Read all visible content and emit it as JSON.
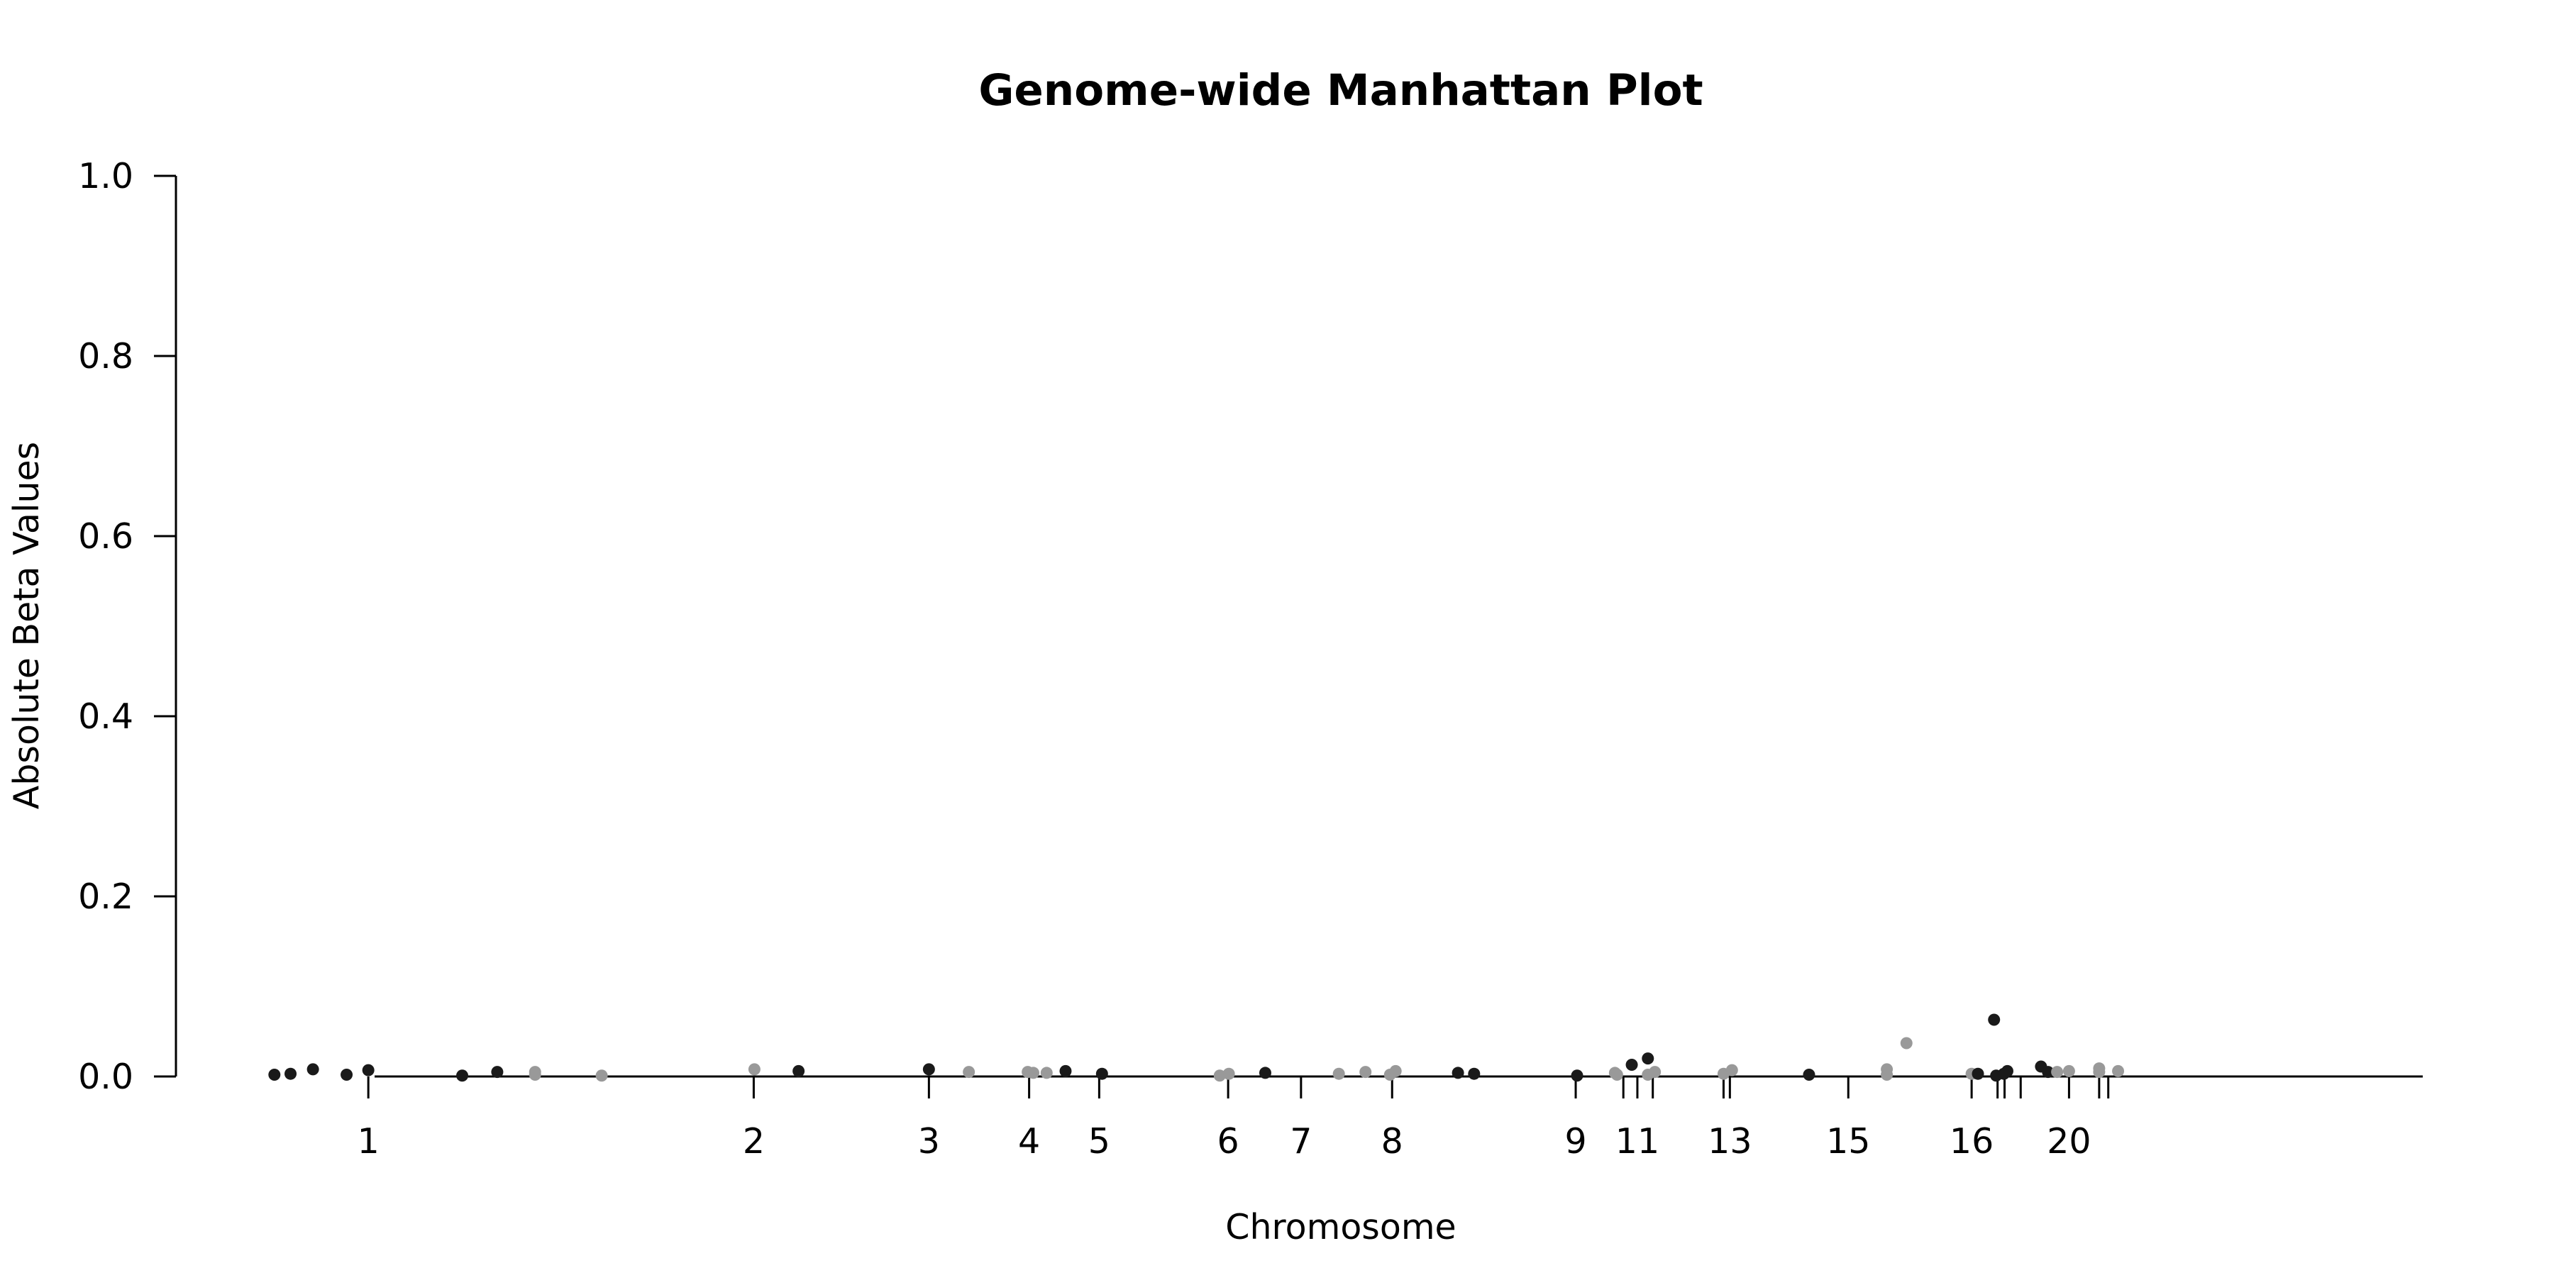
{
  "chart_data": {
    "type": "scatter",
    "title": "Genome-wide Manhattan Plot",
    "xlabel": "Chromosome",
    "ylabel": "Absolute Beta Values",
    "ylim": [
      0,
      1
    ],
    "xlim": [
      0,
      3100
    ],
    "y_ticks": [
      "0.0",
      "0.2",
      "0.4",
      "0.6",
      "0.8",
      "1.0"
    ],
    "y_tick_values": [
      0,
      0.2,
      0.4,
      0.6,
      0.8,
      1.0
    ],
    "grid": false,
    "legend": "none",
    "colors": {
      "odd": "#1a1a1a",
      "even": "#999999"
    },
    "x_ticks": [
      {
        "value": 150,
        "label": "1"
      },
      {
        "value": 700,
        "label": "2"
      },
      {
        "value": 950,
        "label": "3"
      },
      {
        "value": 1093,
        "label": "4"
      },
      {
        "value": 1193,
        "label": "5"
      },
      {
        "value": 1377,
        "label": "6"
      },
      {
        "value": 1481,
        "label": "7"
      },
      {
        "value": 1611,
        "label": "8"
      },
      {
        "value": 1873,
        "label": "9"
      },
      {
        "value": 1941,
        "label": ""
      },
      {
        "value": 1961,
        "label": "11"
      },
      {
        "value": 1983,
        "label": ""
      },
      {
        "value": 2084,
        "label": ""
      },
      {
        "value": 2093,
        "label": "13"
      },
      {
        "value": 2262,
        "label": "15"
      },
      {
        "value": 2438,
        "label": "16"
      },
      {
        "value": 2475,
        "label": ""
      },
      {
        "value": 2485,
        "label": ""
      },
      {
        "value": 2508,
        "label": ""
      },
      {
        "value": 2577,
        "label": "20"
      },
      {
        "value": 2620,
        "label": ""
      },
      {
        "value": 2633,
        "label": ""
      }
    ],
    "points": [
      {
        "x": 16,
        "y": 0.002,
        "group": "odd"
      },
      {
        "x": 39,
        "y": 0.003,
        "group": "odd"
      },
      {
        "x": 71,
        "y": 0.008,
        "group": "odd"
      },
      {
        "x": 119,
        "y": 0.002,
        "group": "odd"
      },
      {
        "x": 150,
        "y": 0.007,
        "group": "odd"
      },
      {
        "x": 284,
        "y": 0.001,
        "group": "odd"
      },
      {
        "x": 334,
        "y": 0.005,
        "group": "odd"
      },
      {
        "x": 388,
        "y": 0.005,
        "group": "even"
      },
      {
        "x": 388,
        "y": 0.002,
        "group": "even"
      },
      {
        "x": 483,
        "y": 0.001,
        "group": "even"
      },
      {
        "x": 701,
        "y": 0.008,
        "group": "even"
      },
      {
        "x": 764,
        "y": 0.006,
        "group": "odd"
      },
      {
        "x": 950,
        "y": 0.008,
        "group": "odd"
      },
      {
        "x": 1007,
        "y": 0.005,
        "group": "even"
      },
      {
        "x": 1091,
        "y": 0.005,
        "group": "even"
      },
      {
        "x": 1099,
        "y": 0.004,
        "group": "even"
      },
      {
        "x": 1118,
        "y": 0.004,
        "group": "even"
      },
      {
        "x": 1145,
        "y": 0.006,
        "group": "odd"
      },
      {
        "x": 1197,
        "y": 0.003,
        "group": "odd"
      },
      {
        "x": 1365,
        "y": 0.001,
        "group": "even"
      },
      {
        "x": 1378,
        "y": 0.003,
        "group": "even"
      },
      {
        "x": 1430,
        "y": 0.004,
        "group": "odd"
      },
      {
        "x": 1535,
        "y": 0.003,
        "group": "even"
      },
      {
        "x": 1573,
        "y": 0.005,
        "group": "even"
      },
      {
        "x": 1608,
        "y": 0.002,
        "group": "even"
      },
      {
        "x": 1616,
        "y": 0.006,
        "group": "even"
      },
      {
        "x": 1705,
        "y": 0.004,
        "group": "odd"
      },
      {
        "x": 1728,
        "y": 0.003,
        "group": "odd"
      },
      {
        "x": 1875,
        "y": 0.001,
        "group": "odd"
      },
      {
        "x": 1929,
        "y": 0.004,
        "group": "even"
      },
      {
        "x": 1932,
        "y": 0.002,
        "group": "even"
      },
      {
        "x": 1953,
        "y": 0.013,
        "group": "odd"
      },
      {
        "x": 1976,
        "y": 0.02,
        "group": "odd"
      },
      {
        "x": 1976,
        "y": 0.002,
        "group": "even"
      },
      {
        "x": 1986,
        "y": 0.005,
        "group": "even"
      },
      {
        "x": 2084,
        "y": 0.003,
        "group": "even"
      },
      {
        "x": 2096,
        "y": 0.007,
        "group": "even"
      },
      {
        "x": 2206,
        "y": 0.002,
        "group": "odd"
      },
      {
        "x": 2317,
        "y": 0.008,
        "group": "even"
      },
      {
        "x": 2317,
        "y": 0.002,
        "group": "even"
      },
      {
        "x": 2345,
        "y": 0.037,
        "group": "even"
      },
      {
        "x": 2438,
        "y": 0.003,
        "group": "even"
      },
      {
        "x": 2447,
        "y": 0.003,
        "group": "odd"
      },
      {
        "x": 2470,
        "y": 0.063,
        "group": "odd"
      },
      {
        "x": 2473,
        "y": 0.001,
        "group": "odd"
      },
      {
        "x": 2484,
        "y": 0.003,
        "group": "odd"
      },
      {
        "x": 2489,
        "y": 0.006,
        "group": "odd"
      },
      {
        "x": 2537,
        "y": 0.011,
        "group": "odd"
      },
      {
        "x": 2547,
        "y": 0.005,
        "group": "odd"
      },
      {
        "x": 2560,
        "y": 0.005,
        "group": "even"
      },
      {
        "x": 2577,
        "y": 0.006,
        "group": "even"
      },
      {
        "x": 2620,
        "y": 0.009,
        "group": "even"
      },
      {
        "x": 2620,
        "y": 0.005,
        "group": "even"
      },
      {
        "x": 2647,
        "y": 0.006,
        "group": "even"
      }
    ]
  }
}
